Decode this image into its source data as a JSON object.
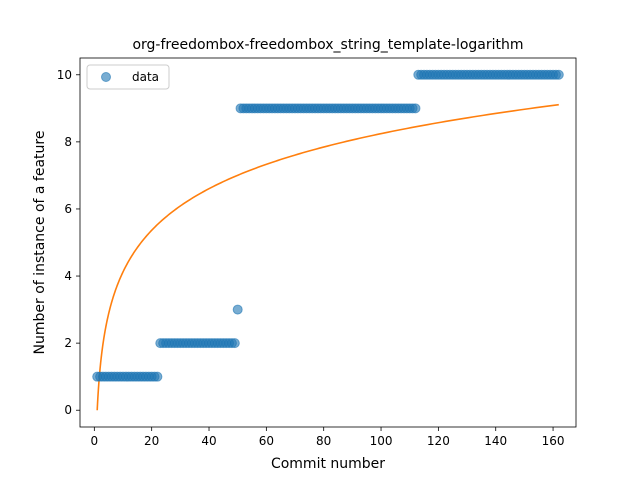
{
  "chart_data": {
    "type": "scatter",
    "title": "org-freedombox-freedombox_string_template-logarithm",
    "xlabel": "Commit number",
    "ylabel": "Number of instance of a feature",
    "xlim": [
      -5,
      168
    ],
    "ylim": [
      -0.5,
      10.5
    ],
    "xticks": [
      0,
      20,
      40,
      60,
      80,
      100,
      120,
      140,
      160
    ],
    "yticks": [
      0,
      2,
      4,
      6,
      8,
      10
    ],
    "legend": {
      "position": "top-left",
      "entries": [
        "data"
      ]
    },
    "grid": false,
    "colors": {
      "data": "#1f77b4",
      "fit": "#ff7f0e"
    },
    "series": [
      {
        "name": "data",
        "kind": "scatter",
        "segments": [
          {
            "x_start": 1,
            "x_end": 22,
            "y": 1
          },
          {
            "x_start": 23,
            "x_end": 49,
            "y": 2
          },
          {
            "x_start": 50,
            "x_end": 50,
            "y": 3
          },
          {
            "x_start": 51,
            "x_end": 112,
            "y": 9
          },
          {
            "x_start": 113,
            "x_end": 162,
            "y": 10
          }
        ]
      },
      {
        "kind": "line",
        "model": "y = 1.7904 * ln(x)",
        "x_range": [
          1,
          162
        ]
      }
    ]
  }
}
